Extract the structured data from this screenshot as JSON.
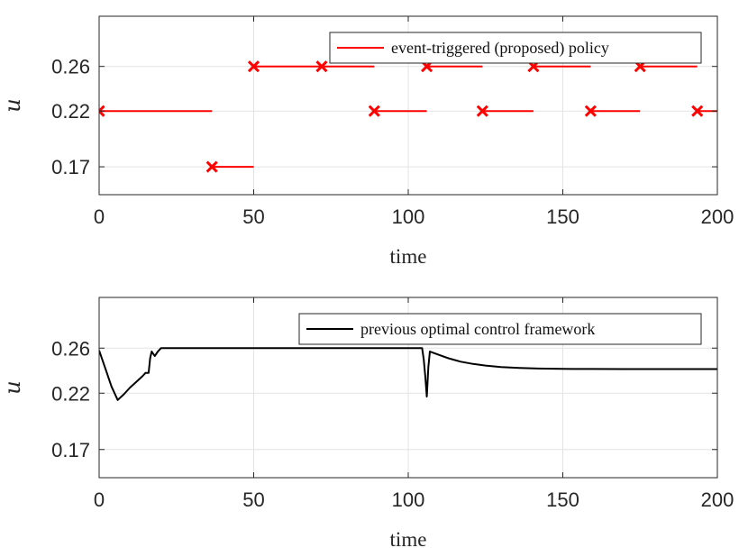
{
  "chart_data": [
    {
      "type": "line",
      "xlabel": "time",
      "ylabel": "u",
      "xlim": [
        0,
        200
      ],
      "ylim": [
        0.145,
        0.305
      ],
      "xticks": [
        "0",
        "50",
        "100",
        "150",
        "200"
      ],
      "yticks": [
        "0.17",
        "0.22",
        "0.26"
      ],
      "grid": true,
      "legend_position": "top-right",
      "series": [
        {
          "name": "event-triggered (proposed) policy",
          "color": "#ff0000",
          "style": "piecewise-constant segments with x markers at trigger times",
          "segments": [
            {
              "x_start": 0,
              "x_end": 36.5,
              "y": 0.22
            },
            {
              "x_start": 36.5,
              "x_end": 50,
              "y": 0.17
            },
            {
              "x_start": 50,
              "x_end": 72,
              "y": 0.26
            },
            {
              "x_start": 72,
              "x_end": 89,
              "y": 0.26
            },
            {
              "x_start": 89,
              "x_end": 106,
              "y": 0.22
            },
            {
              "x_start": 106,
              "x_end": 124,
              "y": 0.26
            },
            {
              "x_start": 124,
              "x_end": 140.5,
              "y": 0.22
            },
            {
              "x_start": 140.5,
              "x_end": 159,
              "y": 0.26
            },
            {
              "x_start": 159,
              "x_end": 175,
              "y": 0.22
            },
            {
              "x_start": 175,
              "x_end": 193.5,
              "y": 0.26
            },
            {
              "x_start": 193.5,
              "x_end": 200,
              "y": 0.22
            }
          ],
          "markers": [
            {
              "x": 0,
              "y": 0.22
            },
            {
              "x": 36.5,
              "y": 0.17
            },
            {
              "x": 50,
              "y": 0.26
            },
            {
              "x": 72,
              "y": 0.26
            },
            {
              "x": 89,
              "y": 0.22
            },
            {
              "x": 106,
              "y": 0.26
            },
            {
              "x": 124,
              "y": 0.22
            },
            {
              "x": 140.5,
              "y": 0.26
            },
            {
              "x": 159,
              "y": 0.22
            },
            {
              "x": 175,
              "y": 0.26
            },
            {
              "x": 193.5,
              "y": 0.22
            }
          ]
        }
      ]
    },
    {
      "type": "line",
      "xlabel": "time",
      "ylabel": "u",
      "xlim": [
        0,
        200
      ],
      "ylim": [
        0.145,
        0.305
      ],
      "xticks": [
        "0",
        "50",
        "100",
        "150",
        "200"
      ],
      "yticks": [
        "0.17",
        "0.22",
        "0.26"
      ],
      "grid": true,
      "legend_position": "top-right",
      "series": [
        {
          "name": "previous optimal control framework",
          "color": "#000000",
          "x": [
            0,
            2,
            4,
            6,
            8,
            10,
            12,
            14,
            15,
            16,
            16.5,
            17,
            18,
            19,
            20,
            30,
            50,
            80,
            100,
            104.5,
            105,
            105.5,
            106,
            106.5,
            107,
            108,
            110,
            113,
            117,
            121,
            125,
            130,
            136,
            142,
            150,
            160,
            170,
            180,
            190,
            200
          ],
          "y": [
            0.258,
            0.242,
            0.226,
            0.214,
            0.219,
            0.225,
            0.23,
            0.235,
            0.238,
            0.238,
            0.251,
            0.257,
            0.253,
            0.257,
            0.26,
            0.26,
            0.26,
            0.26,
            0.26,
            0.26,
            0.25,
            0.235,
            0.217,
            0.243,
            0.257,
            0.256,
            0.254,
            0.251,
            0.248,
            0.246,
            0.2445,
            0.2432,
            0.2424,
            0.2419,
            0.2416,
            0.2415,
            0.2414,
            0.2414,
            0.2414,
            0.2414
          ]
        }
      ]
    }
  ]
}
